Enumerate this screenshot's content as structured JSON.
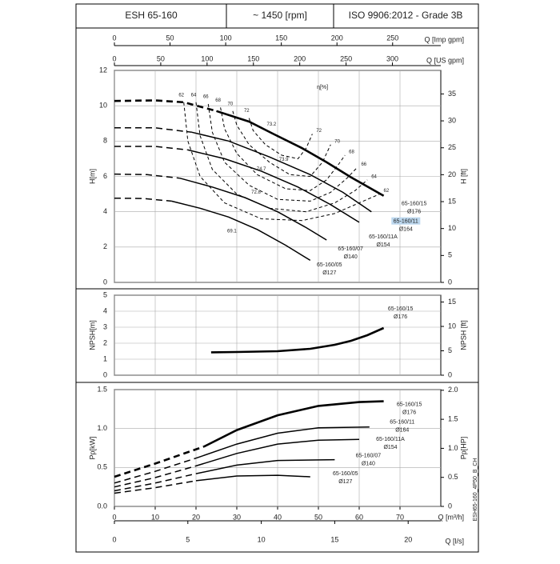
{
  "header": {
    "cells": [
      "ESH 65-160",
      "~ 1450 [rpm]",
      "ISO 9906:2012 - Grade 3B"
    ]
  },
  "code": "ESH65-160_4P50_B_CH",
  "chart_data": [
    {
      "type": "line",
      "ylabel": "H[m]",
      "ylim": [
        0,
        12
      ],
      "yticks": [
        0,
        2,
        4,
        6,
        8,
        10,
        12
      ],
      "y2label": "H [ft]",
      "y2lim": [
        0,
        39.37
      ],
      "y2ticks": [
        0,
        5,
        10,
        15,
        20,
        25,
        30,
        35
      ],
      "xlim": [
        0,
        80
      ],
      "xticks": [
        0,
        10,
        20,
        30,
        40,
        50,
        60,
        70
      ],
      "x2label": "Q [Imp gpm]",
      "x2lim": [
        0,
        293.3
      ],
      "x2ticks": [
        0,
        50,
        100,
        150,
        200,
        250
      ],
      "x3label": "Q [US gpm]",
      "x3lim": [
        0,
        352.2
      ],
      "x3ticks": [
        0,
        50,
        100,
        150,
        200,
        250,
        300
      ],
      "grid": true,
      "eta_label": "η[%]",
      "eta_label_at": [
        51,
        11.05
      ],
      "series": [
        {
          "name": "65-160/15",
          "label": "Ø176",
          "dashed_points": 4,
          "x": [
            0,
            10,
            17,
            25,
            33,
            39,
            46,
            52,
            58,
            66
          ],
          "values": [
            10.27,
            10.3,
            10.2,
            9.7,
            9.1,
            8.4,
            7.6,
            6.8,
            5.95,
            4.9
          ]
        },
        {
          "name": "65-160/11",
          "label": "Ø164",
          "dashed_points": 3,
          "x": [
            0,
            10,
            19,
            28,
            38,
            48,
            56,
            63
          ],
          "values": [
            8.75,
            8.75,
            8.5,
            8.0,
            7.1,
            6.1,
            5.1,
            4.0
          ]
        },
        {
          "name": "65-160/11A",
          "label": "Ø154",
          "dashed_points": 3,
          "x": [
            0,
            10,
            18,
            27,
            36,
            45,
            53,
            60
          ],
          "values": [
            7.7,
            7.7,
            7.5,
            7.0,
            6.3,
            5.4,
            4.4,
            3.4
          ]
        },
        {
          "name": "65-160/07",
          "label": "Ø140",
          "dashed_points": 3,
          "x": [
            0,
            8,
            16,
            24,
            32,
            40,
            47,
            52
          ],
          "values": [
            6.13,
            6.1,
            5.9,
            5.4,
            4.8,
            4.0,
            3.1,
            2.4
          ]
        },
        {
          "name": "65-160/05",
          "label": "Ø127",
          "dashed_points": 3,
          "x": [
            0,
            7,
            14,
            21,
            28,
            35,
            42,
            48
          ],
          "values": [
            4.77,
            4.75,
            4.6,
            4.2,
            3.7,
            3.0,
            2.1,
            1.25
          ]
        }
      ],
      "efficiency": [
        {
          "level": 62,
          "x": [
            17,
            18,
            21,
            27,
            36,
            46,
            54,
            60,
            65
          ],
          "values": [
            10.2,
            8,
            6,
            4.5,
            3.6,
            3.5,
            3.9,
            4.5,
            5.0
          ]
        },
        {
          "level": 64,
          "x": [
            20,
            21,
            24,
            30,
            38,
            47,
            54,
            59,
            62
          ],
          "values": [
            10.2,
            8.3,
            6.4,
            5.0,
            4.2,
            4.0,
            4.5,
            5.2,
            5.8
          ]
        },
        {
          "level": 66,
          "x": [
            23,
            24,
            27,
            33,
            40,
            48,
            53,
            57,
            59.5
          ],
          "values": [
            10.1,
            8.5,
            6.8,
            5.5,
            4.7,
            4.6,
            5.1,
            5.9,
            6.5
          ]
        },
        {
          "level": 68,
          "x": [
            26,
            27,
            30,
            35,
            42,
            48,
            52,
            55,
            56.5
          ],
          "values": [
            9.9,
            8.7,
            7.3,
            6.1,
            5.3,
            5.2,
            5.8,
            6.7,
            7.2
          ]
        },
        {
          "level": 70,
          "x": [
            29,
            30,
            33,
            38,
            43,
            48,
            51,
            53
          ],
          "values": [
            9.7,
            8.9,
            7.8,
            6.8,
            6.1,
            6.0,
            6.8,
            7.8
          ]
        },
        {
          "level": 72,
          "x": [
            33,
            34,
            37,
            41,
            45,
            47,
            48.5
          ],
          "values": [
            9.3,
            8.6,
            7.8,
            7.2,
            7.0,
            7.6,
            8.4
          ]
        }
      ],
      "annotations": [
        {
          "text": 73.2,
          "x": 38.5,
          "y": 8.95
        },
        {
          "text": 73.9,
          "x": 41.5,
          "y": 6.95
        },
        {
          "text": 74.7,
          "x": 36,
          "y": 6.4
        },
        {
          "text": 72.8,
          "x": 34.7,
          "y": 5.1
        },
        {
          "text": 69.1,
          "x": 28.8,
          "y": 2.9
        }
      ]
    },
    {
      "type": "line",
      "ylabel": "NPSH[m]",
      "ylim": [
        0,
        5
      ],
      "yticks": [
        0,
        1,
        2,
        3,
        4,
        5
      ],
      "y2label": "NPSH [ft]",
      "y2lim": [
        0,
        16.4
      ],
      "y2ticks": [
        0,
        5,
        10,
        15
      ],
      "xlim": [
        0,
        80
      ],
      "xticks": [
        0,
        10,
        20,
        30,
        40,
        50,
        60,
        70
      ],
      "grid": true,
      "series": [
        {
          "name": "65-160/15",
          "label": "Ø176",
          "dashed_points": 0,
          "x": [
            23.7,
            30,
            40,
            48,
            54,
            58,
            62,
            66
          ],
          "values": [
            1.43,
            1.45,
            1.5,
            1.65,
            1.9,
            2.15,
            2.5,
            2.95
          ]
        }
      ]
    },
    {
      "type": "line",
      "ylabel": "Pp[kW]",
      "ylim": [
        0,
        1.5
      ],
      "yticks": [
        {
          "value": 0,
          "label": "0.0"
        },
        0.5,
        {
          "value": 1,
          "label": "1.0"
        },
        1.5
      ],
      "y2label": "Pp[HP]",
      "y2lim": [
        0,
        2.0115
      ],
      "y2ticks": [
        0,
        0.5,
        {
          "value": 1,
          "label": "1.0"
        },
        1.5,
        {
          "value": 2,
          "label": "2.0"
        }
      ],
      "xlabel": "Q [m³/h]",
      "xlim": [
        0,
        80
      ],
      "xticks": [
        0,
        10,
        20,
        30,
        40,
        50,
        60,
        70
      ],
      "x2label": "Q [l/s]",
      "x2lim": [
        0,
        22.222
      ],
      "x2ticks": [
        0,
        5,
        10,
        15,
        20
      ],
      "grid": true,
      "series": [
        {
          "name": "65-160/15",
          "label": "Ø176",
          "dashed_points": 3,
          "x": [
            0,
            10,
            22,
            30,
            40,
            50,
            60,
            66
          ],
          "values": [
            0.38,
            0.55,
            0.77,
            0.98,
            1.17,
            1.29,
            1.34,
            1.35
          ]
        },
        {
          "name": "65-160/11",
          "label": "Ø164",
          "dashed_points": 3,
          "x": [
            0,
            10,
            20,
            30,
            40,
            50,
            62.5
          ],
          "values": [
            0.3,
            0.45,
            0.62,
            0.8,
            0.94,
            1.01,
            1.02
          ]
        },
        {
          "name": "65-160/11A",
          "label": "Ø154",
          "dashed_points": 3,
          "x": [
            0,
            10,
            20,
            30,
            40,
            50,
            60
          ],
          "values": [
            0.25,
            0.37,
            0.52,
            0.68,
            0.8,
            0.85,
            0.86
          ]
        },
        {
          "name": "65-160/07",
          "label": "Ø140",
          "dashed_points": 3,
          "x": [
            0,
            10,
            20,
            30,
            40,
            54
          ],
          "values": [
            0.2,
            0.3,
            0.42,
            0.53,
            0.59,
            0.6
          ]
        },
        {
          "name": "65-160/05",
          "label": "Ø127",
          "dashed_points": 3,
          "x": [
            0,
            10,
            20,
            30,
            40,
            48
          ],
          "values": [
            0.17,
            0.24,
            0.33,
            0.39,
            0.4,
            0.38
          ]
        }
      ]
    }
  ]
}
